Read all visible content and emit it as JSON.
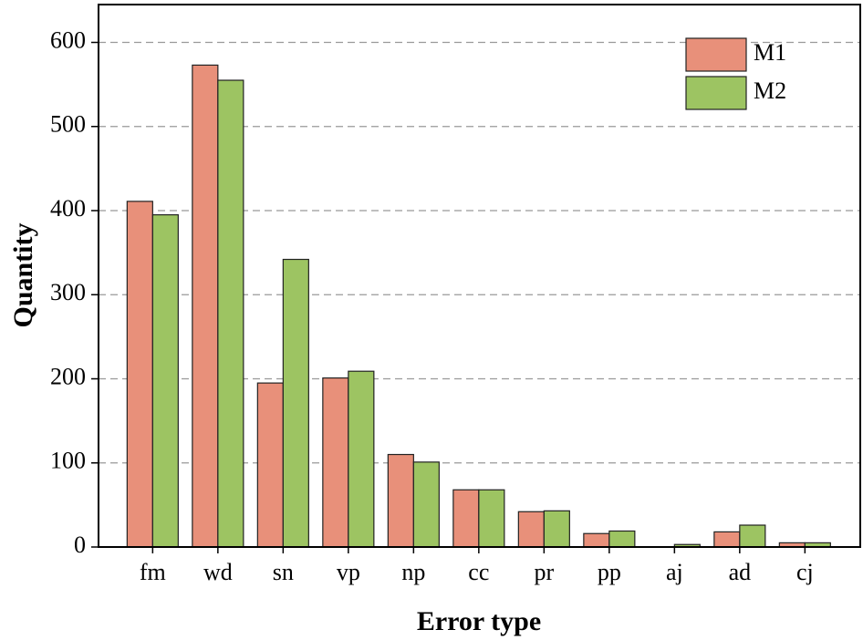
{
  "chart_data": {
    "type": "bar",
    "x_label": "Error type",
    "y_label": "Quantity",
    "categories": [
      "fm",
      "wd",
      "sn",
      "vp",
      "np",
      "cc",
      "pr",
      "pp",
      "aj",
      "ad",
      "cj"
    ],
    "series": [
      {
        "name": "M1",
        "color": "#e8907a",
        "values": [
          411,
          573,
          195,
          201,
          110,
          68,
          42,
          16,
          0,
          18,
          5
        ]
      },
      {
        "name": "M2",
        "color": "#9dc462",
        "values": [
          395,
          555,
          342,
          209,
          101,
          68,
          43,
          19,
          3,
          26,
          5
        ]
      }
    ],
    "ylim": [
      0,
      645
    ],
    "yticks": [
      0,
      100,
      200,
      300,
      400,
      500,
      600
    ],
    "grid": true,
    "legend": "upper right"
  }
}
